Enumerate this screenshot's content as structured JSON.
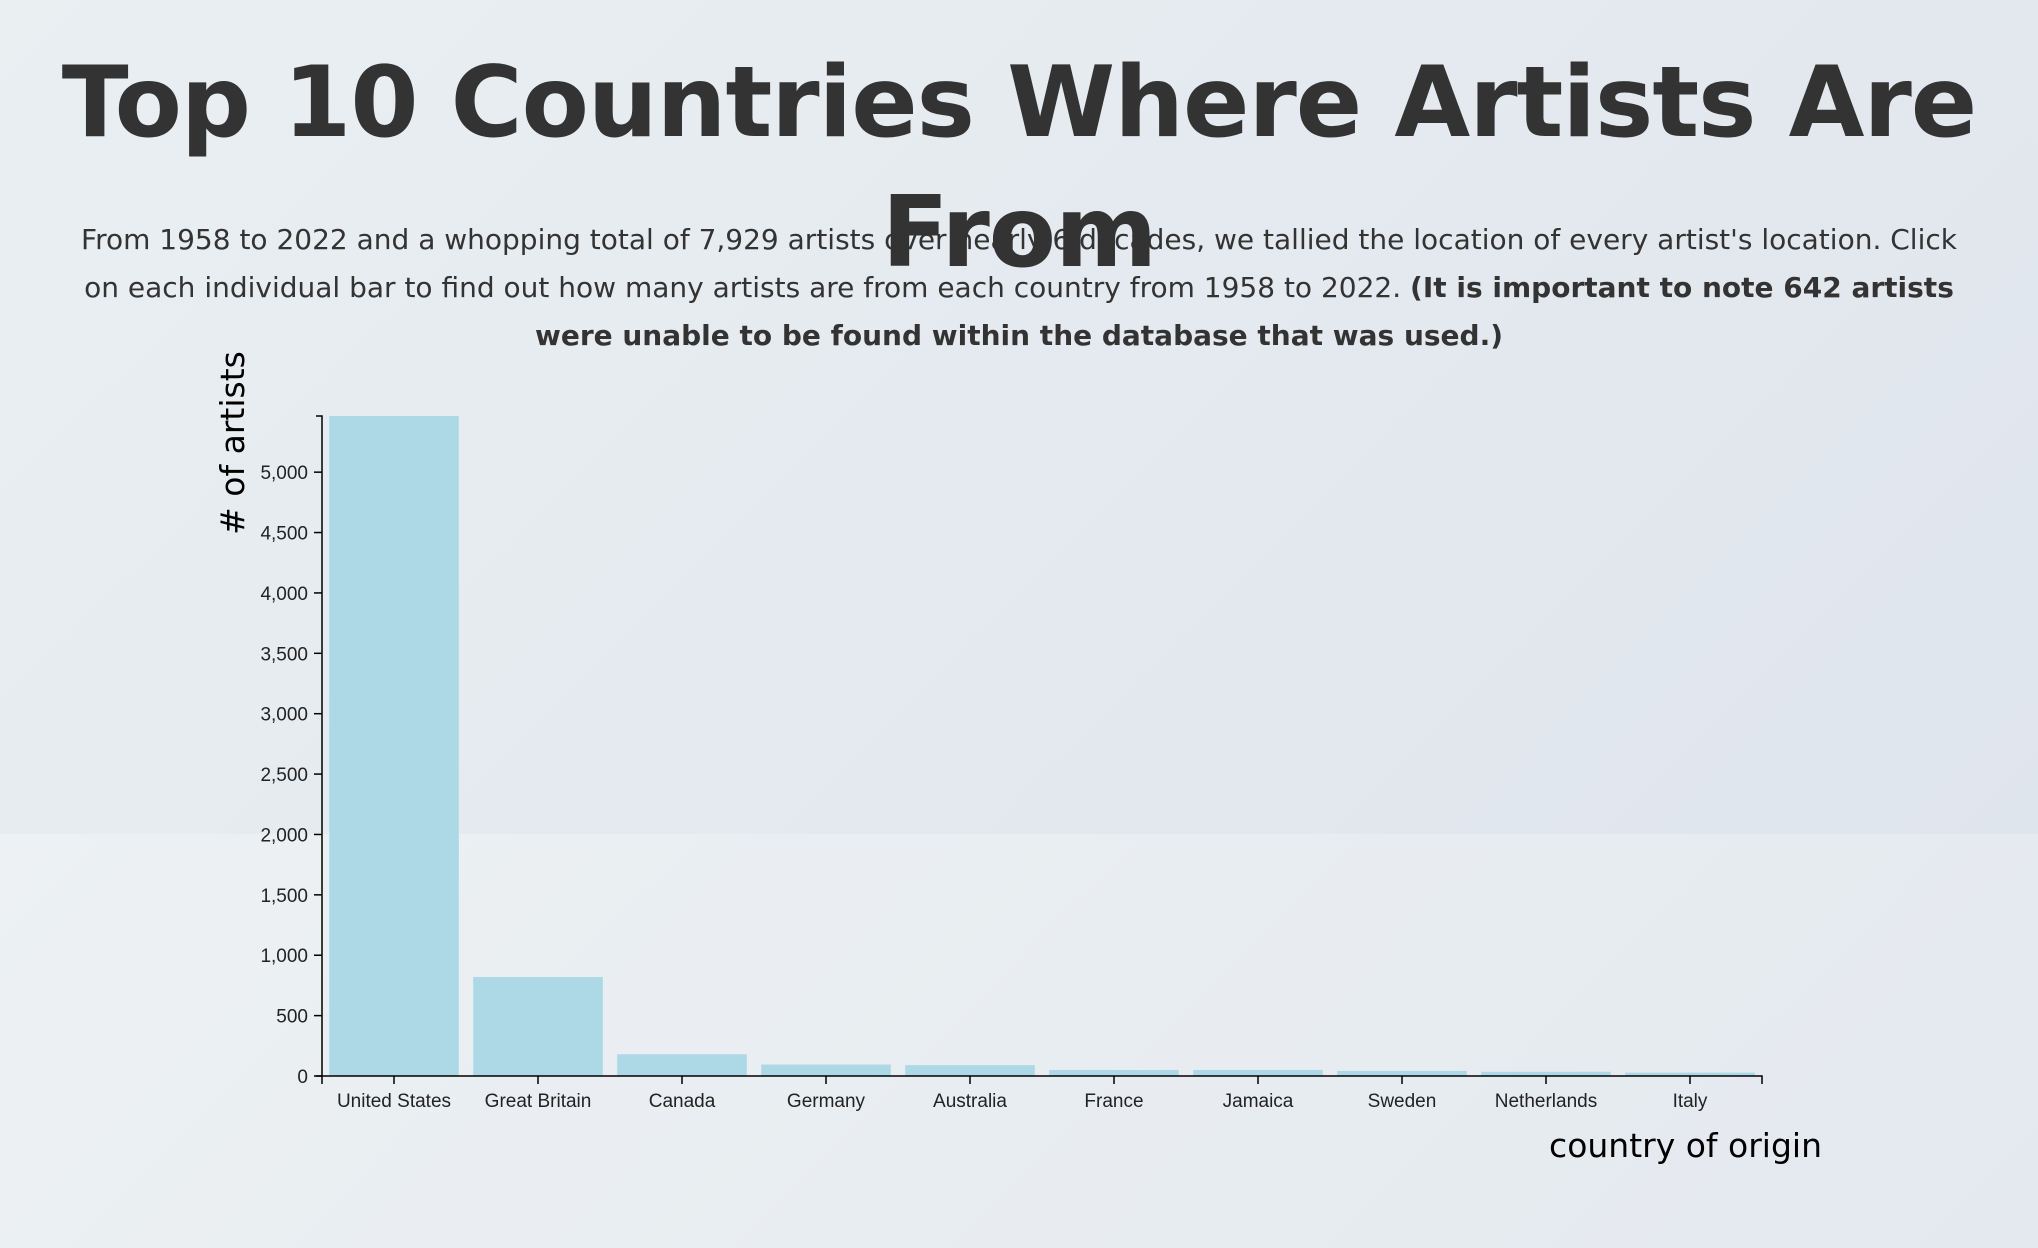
{
  "header": {
    "title": "Top 10 Countries Where Artists Are From",
    "description": "From 1958 to 2022 and a whopping total of 7,929 artists over nearly 6 decades, we tallied the location of every artist's location. Click on each individual bar to find out how many artists are from each country from 1958 to 2022. ",
    "note": "(It is important to note 642 artists were unable to be found within the database that was used.)"
  },
  "chart_data": {
    "type": "bar",
    "categories": [
      "United States",
      "Great Britain",
      "Canada",
      "Germany",
      "Australia",
      "France",
      "Jamaica",
      "Sweden",
      "Netherlands",
      "Italy"
    ],
    "values": [
      5465,
      820,
      180,
      95,
      90,
      50,
      50,
      42,
      35,
      28
    ],
    "xlabel": "country of origin",
    "ylabel": "# of artists",
    "ylim": [
      0,
      5465
    ],
    "yticks": [
      0,
      500,
      1000,
      1500,
      2000,
      2500,
      3000,
      3500,
      4000,
      4500,
      5000
    ],
    "ytick_labels": [
      "0",
      "500",
      "1,000",
      "1,500",
      "2,000",
      "2,500",
      "3,000",
      "3,500",
      "4,000",
      "4,500",
      "5,000"
    ],
    "bar_color": "#add8e6",
    "grid": false
  }
}
